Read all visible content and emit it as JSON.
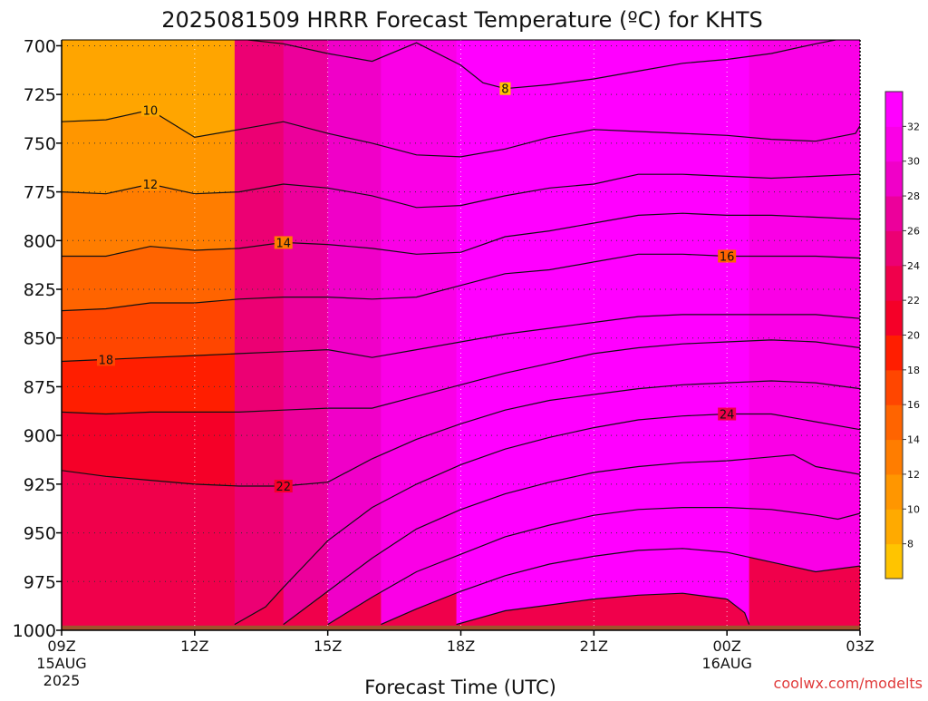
{
  "chart_data": {
    "type": "contour",
    "title": "2025081509 HRRR Forecast Temperature (ºC) for KHTS",
    "xlabel": "Forecast Time (UTC)",
    "credit": "coolwx.com/modelts",
    "y_axis": {
      "inverted": true,
      "range": [
        1000,
        697
      ],
      "ticks": [
        "700",
        "725",
        "750",
        "775",
        "800",
        "825",
        "850",
        "875",
        "900",
        "925",
        "950",
        "975",
        "1000"
      ]
    },
    "x_axis": {
      "range": [
        0,
        18
      ],
      "ticks": [
        {
          "hour": 0,
          "label": "09Z",
          "sub": "15AUG",
          "sub2": "2025"
        },
        {
          "hour": 3,
          "label": "12Z"
        },
        {
          "hour": 6,
          "label": "15Z"
        },
        {
          "hour": 9,
          "label": "18Z"
        },
        {
          "hour": 12,
          "label": "21Z"
        },
        {
          "hour": 15,
          "label": "00Z",
          "sub": "16AUG"
        },
        {
          "hour": 18,
          "label": "03Z"
        }
      ]
    },
    "grid": true,
    "colorbar": {
      "labels": [
        "8",
        "10",
        "12",
        "14",
        "16",
        "18",
        "20",
        "22",
        "24",
        "26",
        "28",
        "30",
        "32"
      ],
      "colors": [
        "#FFC400",
        "#FFAA00",
        "#FF9600",
        "#FF7D00",
        "#FF6400",
        "#FF4600",
        "#FF1E00",
        "#F50028",
        "#F0004B",
        "#EC0073",
        "#EC009B",
        "#F000C8",
        "#FA00E6",
        "#FF00FF"
      ]
    },
    "ground_color": "#A0522D",
    "background_color": "#FFA500",
    "contours": [
      {
        "level": 8,
        "label": "8",
        "label_at": {
          "hour": 10,
          "p": 722
        },
        "points": [
          [
            4.2,
            697
          ],
          [
            5,
            699
          ],
          [
            6,
            704
          ],
          [
            7,
            708
          ],
          [
            8,
            698.5
          ],
          [
            9,
            710
          ],
          [
            9.5,
            719
          ],
          [
            10,
            722
          ],
          [
            11,
            720
          ],
          [
            12,
            717
          ],
          [
            13,
            713
          ],
          [
            14,
            709
          ],
          [
            15,
            707
          ],
          [
            16,
            704
          ],
          [
            17,
            699
          ],
          [
            17.45,
            697
          ]
        ]
      },
      {
        "level": 10,
        "label": "10",
        "label_at": {
          "hour": 2,
          "p": 733
        },
        "points": [
          [
            0,
            739
          ],
          [
            1,
            738
          ],
          [
            2,
            733
          ],
          [
            3,
            747
          ],
          [
            4,
            743
          ],
          [
            5,
            739
          ],
          [
            6,
            745
          ],
          [
            7,
            750
          ],
          [
            8,
            756
          ],
          [
            9,
            757
          ],
          [
            10,
            753
          ],
          [
            11,
            747
          ],
          [
            12,
            743
          ],
          [
            13,
            744
          ],
          [
            14,
            745
          ],
          [
            15,
            746
          ],
          [
            16,
            748
          ],
          [
            17,
            749
          ],
          [
            17.9,
            745
          ],
          [
            18,
            741
          ]
        ]
      },
      {
        "level": 12,
        "label": "12",
        "label_at": {
          "hour": 2,
          "p": 771
        },
        "points": [
          [
            0,
            775
          ],
          [
            1,
            776
          ],
          [
            2,
            771
          ],
          [
            3,
            776
          ],
          [
            4,
            775
          ],
          [
            5,
            771
          ],
          [
            6,
            773
          ],
          [
            7,
            777
          ],
          [
            8,
            783
          ],
          [
            9,
            782
          ],
          [
            10,
            777
          ],
          [
            11,
            773
          ],
          [
            12,
            771
          ],
          [
            13,
            766
          ],
          [
            14,
            766
          ],
          [
            15,
            767
          ],
          [
            16,
            768
          ],
          [
            17,
            767
          ],
          [
            18,
            766
          ]
        ]
      },
      {
        "level": 14,
        "label": "14",
        "label_at": {
          "hour": 5,
          "p": 801
        },
        "points": [
          [
            0,
            808
          ],
          [
            1,
            808
          ],
          [
            2,
            803
          ],
          [
            3,
            805
          ],
          [
            4,
            804
          ],
          [
            5,
            801
          ],
          [
            6,
            802
          ],
          [
            7,
            804
          ],
          [
            8,
            807
          ],
          [
            9,
            806
          ],
          [
            10,
            798
          ],
          [
            11,
            795
          ],
          [
            12,
            791
          ],
          [
            13,
            787
          ],
          [
            14,
            786
          ],
          [
            15,
            787
          ],
          [
            16,
            787
          ],
          [
            17,
            788
          ],
          [
            18,
            789
          ]
        ]
      },
      {
        "level": 16,
        "label": "16",
        "label_at": {
          "hour": 15,
          "p": 808
        },
        "points": [
          [
            0,
            836
          ],
          [
            1,
            835
          ],
          [
            2,
            832
          ],
          [
            3,
            832
          ],
          [
            4,
            830
          ],
          [
            5,
            829
          ],
          [
            6,
            829
          ],
          [
            7,
            830
          ],
          [
            8,
            829
          ],
          [
            9,
            823
          ],
          [
            10,
            817
          ],
          [
            11,
            815
          ],
          [
            12,
            811
          ],
          [
            13,
            807
          ],
          [
            14,
            807
          ],
          [
            15,
            808
          ],
          [
            16,
            808
          ],
          [
            17,
            808
          ],
          [
            18,
            809
          ]
        ]
      },
      {
        "level": 18,
        "label": "18",
        "label_at": {
          "hour": 1,
          "p": 861
        },
        "points": [
          [
            0,
            862
          ],
          [
            1,
            861
          ],
          [
            2,
            860
          ],
          [
            3,
            859
          ],
          [
            4,
            858
          ],
          [
            5,
            857
          ],
          [
            6,
            856
          ],
          [
            7,
            860
          ],
          [
            8,
            856
          ],
          [
            9,
            852
          ],
          [
            10,
            848
          ],
          [
            11,
            845
          ],
          [
            12,
            842
          ],
          [
            13,
            839
          ],
          [
            14,
            838
          ],
          [
            15,
            838
          ],
          [
            16,
            838
          ],
          [
            17,
            838
          ],
          [
            18,
            840
          ]
        ]
      },
      {
        "level": 20,
        "label": "",
        "points": [
          [
            0,
            888
          ],
          [
            1,
            889
          ],
          [
            2,
            888
          ],
          [
            3,
            888
          ],
          [
            4,
            888
          ],
          [
            5,
            887
          ],
          [
            6,
            886
          ],
          [
            7,
            886
          ],
          [
            8,
            880
          ],
          [
            9,
            874
          ],
          [
            10,
            868
          ],
          [
            11,
            863
          ],
          [
            12,
            858
          ],
          [
            13,
            855
          ],
          [
            14,
            853
          ],
          [
            15,
            852
          ],
          [
            16,
            851
          ],
          [
            17,
            852
          ],
          [
            18,
            855
          ]
        ]
      },
      {
        "level": 22,
        "label": "22",
        "label_at": {
          "hour": 5,
          "p": 926
        },
        "points": [
          [
            0,
            918
          ],
          [
            1,
            921
          ],
          [
            2,
            923
          ],
          [
            3,
            925
          ],
          [
            4,
            926
          ],
          [
            5,
            926
          ],
          [
            6,
            924
          ],
          [
            7,
            912
          ],
          [
            8,
            902
          ],
          [
            9,
            894
          ],
          [
            10,
            887
          ],
          [
            11,
            882
          ],
          [
            12,
            879
          ],
          [
            13,
            876
          ],
          [
            14,
            874
          ],
          [
            15,
            873
          ],
          [
            16,
            872
          ],
          [
            17,
            873
          ],
          [
            18,
            876
          ]
        ]
      },
      {
        "level": 24,
        "label": "24",
        "label_at": {
          "hour": 15,
          "p": 889
        },
        "points": [
          [
            3.9,
            997
          ],
          [
            4.6,
            988
          ],
          [
            5,
            978
          ],
          [
            5.5,
            966
          ],
          [
            6,
            954
          ],
          [
            7,
            937
          ],
          [
            8,
            925
          ],
          [
            9,
            915
          ],
          [
            10,
            907
          ],
          [
            11,
            901
          ],
          [
            12,
            896
          ],
          [
            13,
            892
          ],
          [
            14,
            890
          ],
          [
            15,
            889
          ],
          [
            16,
            889
          ],
          [
            17,
            893
          ],
          [
            18,
            897
          ]
        ]
      },
      {
        "level": 26,
        "label": "",
        "points": [
          [
            5,
            997
          ],
          [
            6,
            980
          ],
          [
            7,
            963
          ],
          [
            8,
            948
          ],
          [
            9,
            938
          ],
          [
            10,
            930
          ],
          [
            11,
            924
          ],
          [
            12,
            919
          ],
          [
            13,
            916
          ],
          [
            14,
            914
          ],
          [
            15,
            913
          ],
          [
            16,
            911
          ],
          [
            16.5,
            910
          ],
          [
            17,
            916
          ],
          [
            18,
            920
          ]
        ]
      },
      {
        "level": 28,
        "label": "",
        "points": [
          [
            6,
            997
          ],
          [
            7,
            983
          ],
          [
            8,
            970
          ],
          [
            9,
            961
          ],
          [
            10,
            952
          ],
          [
            11,
            946
          ],
          [
            12,
            941
          ],
          [
            13,
            938
          ],
          [
            14,
            937
          ],
          [
            15,
            937
          ],
          [
            16,
            938
          ],
          [
            17,
            941
          ],
          [
            17.5,
            943
          ],
          [
            18,
            940
          ]
        ]
      },
      {
        "level": 30,
        "label": "",
        "points": [
          [
            7.2,
            997
          ],
          [
            8,
            989
          ],
          [
            9,
            980
          ],
          [
            10,
            972
          ],
          [
            11,
            966
          ],
          [
            12,
            962
          ],
          [
            13,
            959
          ],
          [
            14,
            958
          ],
          [
            15,
            960
          ],
          [
            16,
            965
          ],
          [
            17,
            970
          ],
          [
            18,
            967
          ]
        ]
      },
      {
        "level": 32,
        "label": "",
        "points": [
          [
            8.9,
            997
          ],
          [
            10,
            990
          ],
          [
            11,
            987
          ],
          [
            12,
            984
          ],
          [
            13,
            982
          ],
          [
            14,
            981
          ],
          [
            15,
            984
          ],
          [
            15.4,
            991
          ],
          [
            15.5,
            997
          ]
        ]
      }
    ]
  }
}
